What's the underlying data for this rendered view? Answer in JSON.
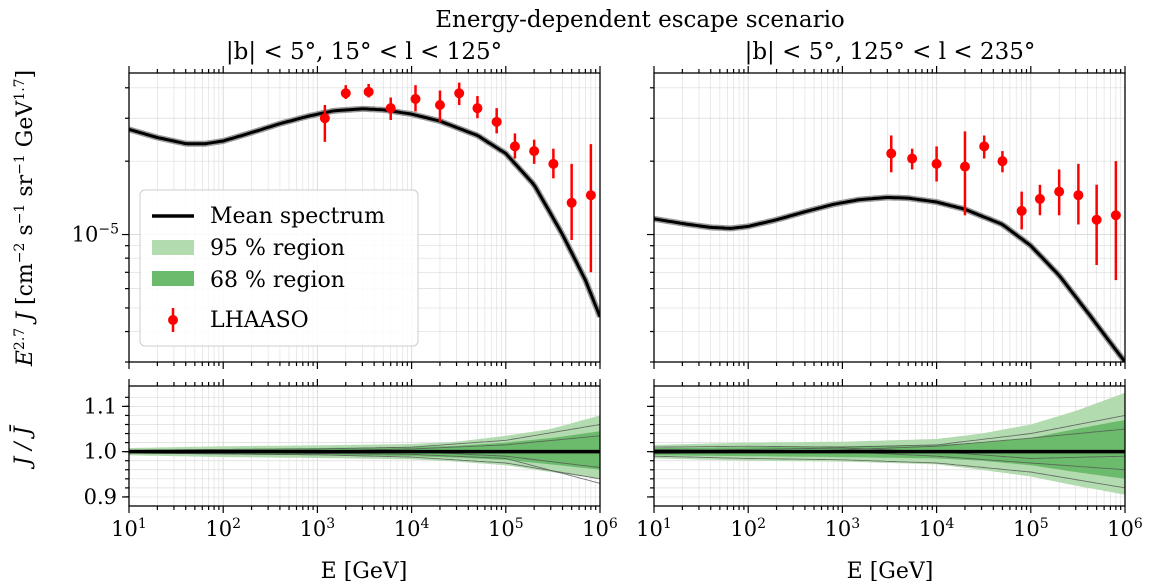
{
  "figure": {
    "suptitle": "Energy-dependent escape scenario",
    "ylabel_top": "E^2.7 J [cm^-2 s^-1 sr^-1 GeV^1.7]",
    "ylabel_bottom": "J / J̄",
    "xlabel": "E [GeV]"
  },
  "legend": {
    "items": [
      {
        "label": "Mean spectrum",
        "kind": "line",
        "color": "#000000"
      },
      {
        "label": "95 % region",
        "kind": "band",
        "color": "#b3dbb0"
      },
      {
        "label": "68 % region",
        "kind": "band",
        "color": "#6cba6c"
      },
      {
        "label": "LHAASO",
        "kind": "errorbar",
        "color": "#ff0000"
      }
    ]
  },
  "colors": {
    "mean": "#000000",
    "band95": "#b3dbb0",
    "band68": "#6cba6c",
    "data": "#ff0000",
    "sample": "#555555",
    "grid": "#dcdcdc"
  },
  "chart_data": [
    {
      "panel": "left",
      "title": "|b| < 5°, 15° < l < 125°",
      "type": "line",
      "xscale": "log",
      "yscale": "log",
      "xlim": [
        10,
        1000000
      ],
      "ylim": [
        3e-06,
        4.6e-05
      ],
      "yticks": [
        {
          "v": 1e-05,
          "label": "10^-5"
        }
      ],
      "xticks": [
        10,
        100,
        1000,
        10000,
        100000,
        1000000
      ],
      "mean_spectrum": {
        "x": [
          10,
          20,
          40,
          65,
          100,
          200,
          400,
          800,
          1500,
          3000,
          5000,
          10000,
          20000,
          50000,
          100000,
          200000,
          400000,
          700000,
          1000000
        ],
        "y": [
          2.7e-05,
          2.5e-05,
          2.36e-05,
          2.36e-05,
          2.42e-05,
          2.62e-05,
          2.85e-05,
          3.06e-05,
          3.22e-05,
          3.28e-05,
          3.25e-05,
          3.12e-05,
          2.92e-05,
          2.55e-05,
          2.15e-05,
          1.6e-05,
          1e-05,
          6.5e-06,
          4.6e-06
        ]
      },
      "lhaaso": [
        {
          "x": 1200,
          "y": 3e-05,
          "lo": 2.4e-05,
          "hi": 3.4e-05
        },
        {
          "x": 2000,
          "y": 3.8e-05,
          "lo": 3.6e-05,
          "hi": 4.1e-05
        },
        {
          "x": 3500,
          "y": 3.85e-05,
          "lo": 3.65e-05,
          "hi": 4.15e-05
        },
        {
          "x": 6000,
          "y": 3.3e-05,
          "lo": 2.95e-05,
          "hi": 3.65e-05
        },
        {
          "x": 11000,
          "y": 3.6e-05,
          "lo": 3.2e-05,
          "hi": 4.1e-05
        },
        {
          "x": 20000,
          "y": 3.4e-05,
          "lo": 2.9e-05,
          "hi": 3.9e-05
        },
        {
          "x": 32000,
          "y": 3.8e-05,
          "lo": 3.4e-05,
          "hi": 4.2e-05
        },
        {
          "x": 50000,
          "y": 3.3e-05,
          "lo": 3e-05,
          "hi": 3.7e-05
        },
        {
          "x": 80000,
          "y": 2.9e-05,
          "lo": 2.6e-05,
          "hi": 3.3e-05
        },
        {
          "x": 125000,
          "y": 2.3e-05,
          "lo": 2.05e-05,
          "hi": 2.6e-05
        },
        {
          "x": 200000,
          "y": 2.2e-05,
          "lo": 1.95e-05,
          "hi": 2.45e-05
        },
        {
          "x": 320000,
          "y": 1.95e-05,
          "lo": 1.7e-05,
          "hi": 2.25e-05
        },
        {
          "x": 500000,
          "y": 1.35e-05,
          "lo": 9.5e-06,
          "hi": 1.95e-05
        },
        {
          "x": 800000,
          "y": 1.45e-05,
          "lo": 7e-06,
          "hi": 2.35e-05
        }
      ]
    },
    {
      "panel": "right",
      "title": "|b| < 5°, 125° < l < 235°",
      "type": "line",
      "xscale": "log",
      "yscale": "log",
      "xlim": [
        10,
        1000000
      ],
      "ylim": [
        3e-06,
        4.6e-05
      ],
      "xticks": [
        10,
        100,
        1000,
        10000,
        100000,
        1000000
      ],
      "mean_spectrum": {
        "x": [
          10,
          20,
          40,
          65,
          100,
          200,
          400,
          800,
          1500,
          3000,
          5000,
          10000,
          20000,
          50000,
          100000,
          200000,
          400000,
          700000,
          1000000
        ],
        "y": [
          1.16e-05,
          1.11e-05,
          1.07e-05,
          1.06e-05,
          1.08e-05,
          1.15e-05,
          1.24e-05,
          1.33e-05,
          1.39e-05,
          1.42e-05,
          1.41e-05,
          1.36e-05,
          1.27e-05,
          1.1e-05,
          9e-06,
          6.8e-06,
          4.8e-06,
          3.6e-06,
          3e-06
        ]
      },
      "lhaaso": [
        {
          "x": 3300,
          "y": 2.15e-05,
          "lo": 1.8e-05,
          "hi": 2.55e-05
        },
        {
          "x": 5500,
          "y": 2.05e-05,
          "lo": 1.85e-05,
          "hi": 2.25e-05
        },
        {
          "x": 10000,
          "y": 1.95e-05,
          "lo": 1.65e-05,
          "hi": 2.3e-05
        },
        {
          "x": 20000,
          "y": 1.9e-05,
          "lo": 1.2e-05,
          "hi": 2.65e-05
        },
        {
          "x": 32000,
          "y": 2.3e-05,
          "lo": 2.05e-05,
          "hi": 2.55e-05
        },
        {
          "x": 50000,
          "y": 2e-05,
          "lo": 1.8e-05,
          "hi": 2.2e-05
        },
        {
          "x": 80000,
          "y": 1.25e-05,
          "lo": 1.05e-05,
          "hi": 1.5e-05
        },
        {
          "x": 125000,
          "y": 1.4e-05,
          "lo": 1.2e-05,
          "hi": 1.6e-05
        },
        {
          "x": 200000,
          "y": 1.5e-05,
          "lo": 1.2e-05,
          "hi": 1.85e-05
        },
        {
          "x": 320000,
          "y": 1.45e-05,
          "lo": 1.1e-05,
          "hi": 1.95e-05
        },
        {
          "x": 500000,
          "y": 1.15e-05,
          "lo": 7.5e-06,
          "hi": 1.6e-05
        },
        {
          "x": 800000,
          "y": 1.2e-05,
          "lo": 6.5e-06,
          "hi": 2e-05
        }
      ]
    },
    {
      "panel": "left-ratio",
      "type": "area",
      "xscale": "log",
      "xlim": [
        10,
        1000000
      ],
      "ylim": [
        0.88,
        1.145
      ],
      "yticks": [
        0.9,
        1.0,
        1.1
      ],
      "xticks": [
        10,
        100,
        1000,
        10000,
        100000,
        1000000
      ],
      "band95": {
        "x": [
          10,
          100,
          1000,
          10000,
          30000,
          100000,
          300000,
          1000000
        ],
        "upper": [
          1.008,
          1.012,
          1.014,
          1.017,
          1.022,
          1.035,
          1.05,
          1.08
        ],
        "lower": [
          0.992,
          0.988,
          0.986,
          0.983,
          0.978,
          0.97,
          0.955,
          0.94
        ]
      },
      "band68": {
        "x": [
          10,
          100,
          1000,
          10000,
          30000,
          100000,
          300000,
          1000000
        ],
        "upper": [
          1.004,
          1.006,
          1.008,
          1.01,
          1.013,
          1.02,
          1.03,
          1.045
        ],
        "lower": [
          0.996,
          0.994,
          0.992,
          0.99,
          0.987,
          0.982,
          0.972,
          0.96
        ]
      },
      "samples_x": [
        10,
        100,
        1000,
        10000,
        100000,
        1000000
      ],
      "samples": [
        [
          1.003,
          1.005,
          1.006,
          1.01,
          1.025,
          1.06
        ],
        [
          0.997,
          0.995,
          0.993,
          0.988,
          0.975,
          0.94
        ],
        [
          1.0,
          1.001,
          1.003,
          1.0,
          0.99,
          0.965
        ],
        [
          1.0,
          0.999,
          1.002,
          1.006,
          1.015,
          1.035
        ],
        [
          0.999,
          0.998,
          0.996,
          0.994,
          0.985,
          0.93
        ]
      ]
    },
    {
      "panel": "right-ratio",
      "type": "area",
      "xscale": "log",
      "xlim": [
        10,
        1000000
      ],
      "ylim": [
        0.88,
        1.145
      ],
      "yticks": [
        0.9,
        1.0,
        1.1
      ],
      "xticks": [
        10,
        100,
        1000,
        10000,
        100000,
        1000000
      ],
      "band95": {
        "x": [
          10,
          100,
          1000,
          10000,
          30000,
          100000,
          300000,
          1000000
        ],
        "upper": [
          1.015,
          1.02,
          1.022,
          1.028,
          1.04,
          1.06,
          1.09,
          1.13
        ],
        "lower": [
          0.985,
          0.98,
          0.978,
          0.972,
          0.96,
          0.945,
          0.925,
          0.905
        ]
      },
      "band68": {
        "x": [
          10,
          100,
          1000,
          10000,
          30000,
          100000,
          300000,
          1000000
        ],
        "upper": [
          1.008,
          1.01,
          1.012,
          1.015,
          1.02,
          1.03,
          1.05,
          1.07
        ],
        "lower": [
          0.992,
          0.99,
          0.988,
          0.985,
          0.98,
          0.97,
          0.955,
          0.94
        ]
      },
      "samples_x": [
        10,
        100,
        1000,
        10000,
        100000,
        1000000
      ],
      "samples": [
        [
          1.01,
          1.012,
          1.01,
          1.015,
          1.04,
          1.08
        ],
        [
          0.99,
          0.985,
          0.982,
          0.975,
          0.955,
          0.92
        ],
        [
          1.005,
          1.003,
          1.0,
          0.99,
          0.975,
          0.96
        ],
        [
          0.996,
          0.998,
          1.004,
          1.012,
          1.03,
          1.05
        ],
        [
          1.002,
          1.005,
          1.008,
          1.0,
          0.985,
          0.99
        ]
      ]
    }
  ]
}
